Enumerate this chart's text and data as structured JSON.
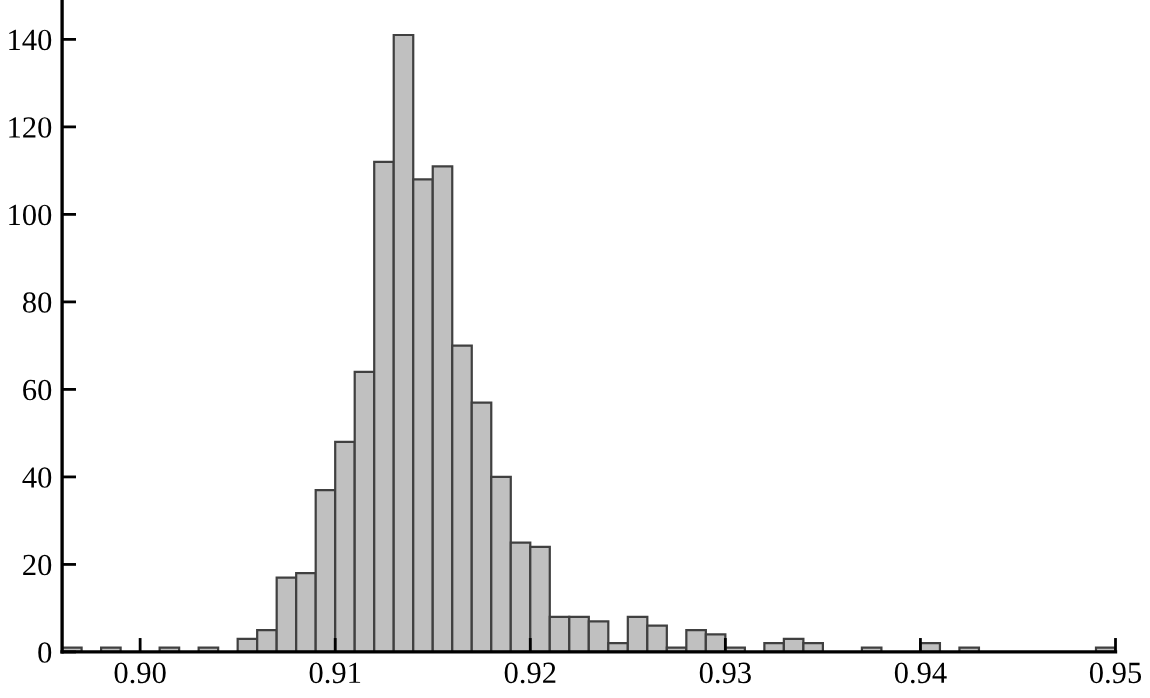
{
  "chart_data": {
    "type": "histogram",
    "bins": [
      0.896,
      0.897,
      0.898,
      0.899,
      0.9,
      0.901,
      0.902,
      0.903,
      0.904,
      0.905,
      0.906,
      0.907,
      0.908,
      0.909,
      0.91,
      0.911,
      0.912,
      0.913,
      0.914,
      0.915,
      0.916,
      0.917,
      0.918,
      0.919,
      0.92,
      0.921,
      0.922,
      0.923,
      0.924,
      0.925,
      0.926,
      0.927,
      0.928,
      0.929,
      0.93,
      0.931,
      0.932,
      0.933,
      0.934,
      0.935,
      0.936,
      0.937,
      0.938,
      0.939,
      0.94,
      0.941,
      0.942,
      0.943,
      0.944,
      0.945,
      0.946,
      0.947,
      0.948,
      0.949,
      0.95
    ],
    "values": [
      1,
      0,
      1,
      0,
      0,
      1,
      0,
      1,
      0,
      3,
      5,
      17,
      18,
      37,
      48,
      64,
      112,
      141,
      108,
      111,
      70,
      57,
      40,
      25,
      24,
      8,
      8,
      7,
      2,
      8,
      6,
      1,
      5,
      4,
      1,
      0,
      2,
      3,
      2,
      0,
      0,
      1,
      0,
      0,
      2,
      0,
      1,
      0,
      0,
      0,
      0,
      0,
      0,
      1
    ],
    "color": "#c0c0c0",
    "xlim": [
      0.896,
      0.95
    ],
    "xticks": [
      {
        "value": 0.9,
        "label": "0.90"
      },
      {
        "value": 0.91,
        "label": "0.91"
      },
      {
        "value": 0.92,
        "label": "0.92"
      },
      {
        "value": 0.93,
        "label": "0.93"
      },
      {
        "value": 0.94,
        "label": "0.94"
      },
      {
        "value": 0.95,
        "label": "0.95"
      }
    ],
    "ylim": [
      0,
      149
    ],
    "yticks": [
      0,
      20,
      40,
      60,
      80,
      100,
      120,
      140
    ],
    "grid": false
  }
}
